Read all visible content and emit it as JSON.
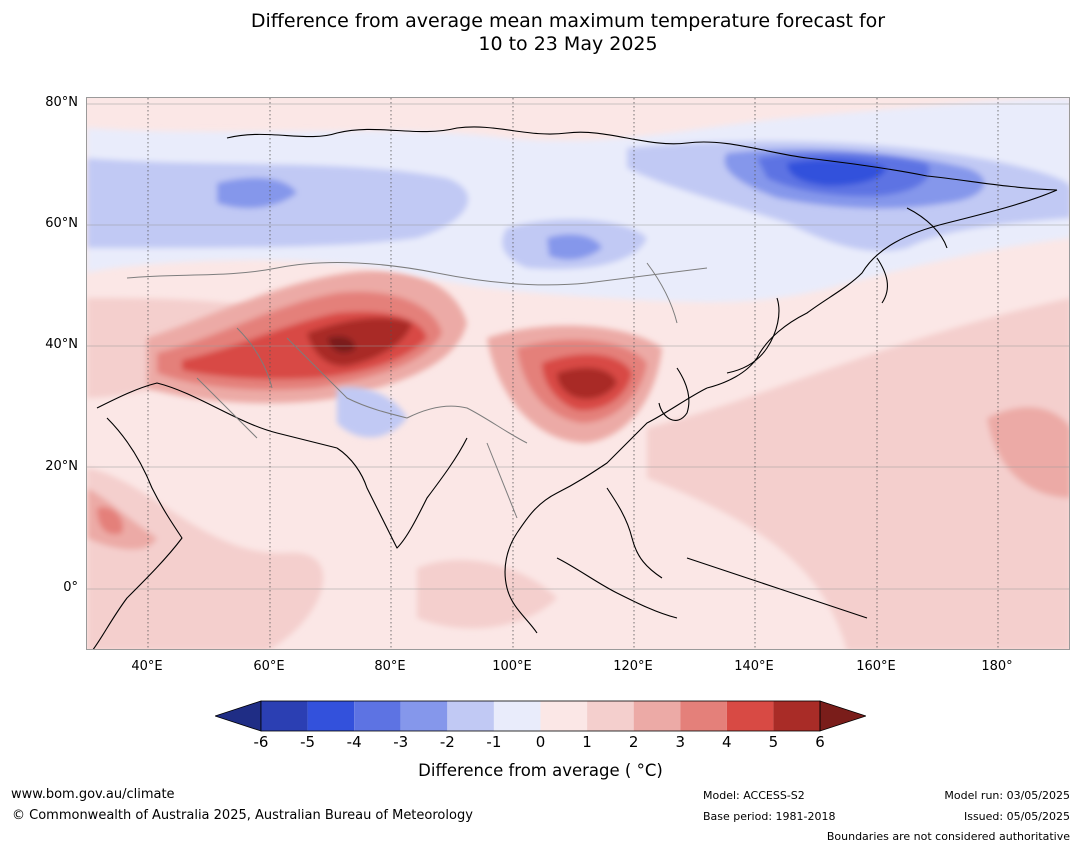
{
  "title_line1": "Difference from average mean maximum temperature forecast for",
  "title_line2": "10 to 23 May 2025",
  "lat_labels": [
    "80°N",
    "60°N",
    "40°N",
    "20°N",
    "0°"
  ],
  "lon_labels": [
    "40°E",
    "60°E",
    "80°E",
    "100°E",
    "120°E",
    "140°E",
    "160°E",
    "180°"
  ],
  "colorbar": {
    "ticks": [
      "-6",
      "-5",
      "-4",
      "-3",
      "-2",
      "-1",
      "0",
      "1",
      "2",
      "3",
      "4",
      "5",
      "6"
    ],
    "colors": [
      "#1f2d85",
      "#2b3fb3",
      "#3351dc",
      "#5d73e3",
      "#8597eb",
      "#c1c9f4",
      "#e9ecfb",
      "#fbe7e6",
      "#f4cfcd",
      "#ecaaa6",
      "#e4807a",
      "#d84a44",
      "#a92c27",
      "#7a1d1a"
    ],
    "label": "Difference from average ( °C)"
  },
  "footer": {
    "website": "www.bom.gov.au/climate",
    "copyright": "© Commonwealth of Australia 2025, Australian Bureau of Meteorology",
    "model": "Model: ACCESS-S2",
    "base_period": "Base period: 1981-2018",
    "model_run": "Model run: 03/05/2025",
    "issued": "Issued: 05/05/2025",
    "disclaimer": "Boundaries are not considered authoritative"
  }
}
